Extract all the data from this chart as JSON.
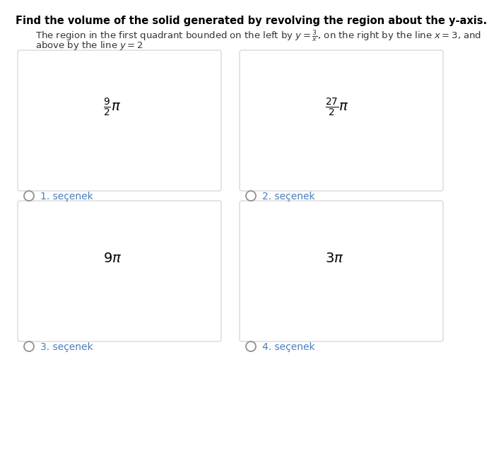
{
  "title": "Find the volume of the solid generated by revolving the region about the y-axis.",
  "subtitle_line1": "The region in the first quadrant bounded on the left by $y = \\frac{3}{x}$, on the right by the line $x = 3$, and",
  "subtitle_line2": "above by the line $y = 2$",
  "options": [
    {
      "label": "1. seçenek",
      "math": "$\\frac{9}{2}\\pi$"
    },
    {
      "label": "2. seçenek",
      "math": "$\\frac{27}{2}\\pi$"
    },
    {
      "label": "3. seçenek",
      "math": "$9\\pi$"
    },
    {
      "label": "4. seçenek",
      "math": "$3\\pi$"
    }
  ],
  "bg_color": "#ffffff",
  "box_facecolor": "#ffffff",
  "box_edgecolor": "#d0d0d0",
  "title_color": "#000000",
  "label_color": "#4a7ebf",
  "radio_color": "#909090",
  "math_color": "#000000",
  "subtitle_color": "#333333"
}
